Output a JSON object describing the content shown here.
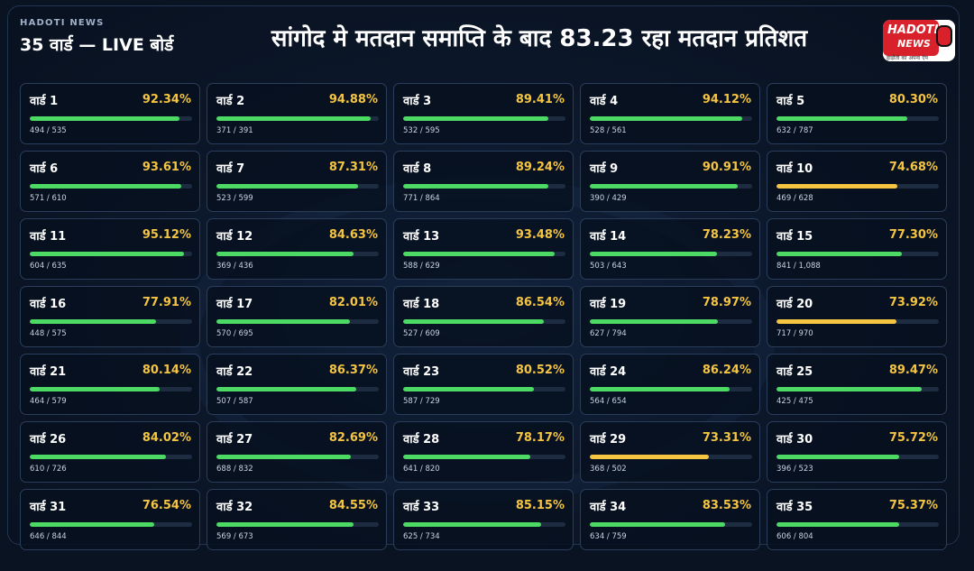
{
  "header": {
    "brand_small": "HADOTI NEWS",
    "board_title": "35 वार्ड — LIVE बोर्ड",
    "headline": "सांगोद मे मतदान समाप्ति के बाद 83.23 रहा मतदान प्रतिशत",
    "logo_line1": "HADOTI",
    "logo_line2": "NEWS",
    "logo_tagline": "हाड़ौती का अपना ऐप"
  },
  "colors": {
    "bar_high": "#4cd964",
    "bar_low": "#f5c542",
    "percent_text": "#f5c542"
  },
  "wards": [
    {
      "label": "वार्ड 1",
      "percent_text": "92.34%",
      "percent": 92.34,
      "counts": "494 / 535"
    },
    {
      "label": "वार्ड 2",
      "percent_text": "94.88%",
      "percent": 94.88,
      "counts": "371 / 391"
    },
    {
      "label": "वार्ड 3",
      "percent_text": "89.41%",
      "percent": 89.41,
      "counts": "532 / 595"
    },
    {
      "label": "वार्ड 4",
      "percent_text": "94.12%",
      "percent": 94.12,
      "counts": "528 / 561"
    },
    {
      "label": "वार्ड 5",
      "percent_text": "80.30%",
      "percent": 80.3,
      "counts": "632 / 787"
    },
    {
      "label": "वार्ड 6",
      "percent_text": "93.61%",
      "percent": 93.61,
      "counts": "571 / 610"
    },
    {
      "label": "वार्ड 7",
      "percent_text": "87.31%",
      "percent": 87.31,
      "counts": "523 / 599"
    },
    {
      "label": "वार्ड 8",
      "percent_text": "89.24%",
      "percent": 89.24,
      "counts": "771 / 864"
    },
    {
      "label": "वार्ड 9",
      "percent_text": "90.91%",
      "percent": 90.91,
      "counts": "390 / 429"
    },
    {
      "label": "वार्ड 10",
      "percent_text": "74.68%",
      "percent": 74.68,
      "counts": "469 / 628"
    },
    {
      "label": "वार्ड 11",
      "percent_text": "95.12%",
      "percent": 95.12,
      "counts": "604 / 635"
    },
    {
      "label": "वार्ड 12",
      "percent_text": "84.63%",
      "percent": 84.63,
      "counts": "369 / 436"
    },
    {
      "label": "वार्ड 13",
      "percent_text": "93.48%",
      "percent": 93.48,
      "counts": "588 / 629"
    },
    {
      "label": "वार्ड 14",
      "percent_text": "78.23%",
      "percent": 78.23,
      "counts": "503 / 643"
    },
    {
      "label": "वार्ड 15",
      "percent_text": "77.30%",
      "percent": 77.3,
      "counts": "841 / 1,088"
    },
    {
      "label": "वार्ड 16",
      "percent_text": "77.91%",
      "percent": 77.91,
      "counts": "448 / 575"
    },
    {
      "label": "वार्ड 17",
      "percent_text": "82.01%",
      "percent": 82.01,
      "counts": "570 / 695"
    },
    {
      "label": "वार्ड 18",
      "percent_text": "86.54%",
      "percent": 86.54,
      "counts": "527 / 609"
    },
    {
      "label": "वार्ड 19",
      "percent_text": "78.97%",
      "percent": 78.97,
      "counts": "627 / 794"
    },
    {
      "label": "वार्ड 20",
      "percent_text": "73.92%",
      "percent": 73.92,
      "counts": "717 / 970"
    },
    {
      "label": "वार्ड 21",
      "percent_text": "80.14%",
      "percent": 80.14,
      "counts": "464 / 579"
    },
    {
      "label": "वार्ड 22",
      "percent_text": "86.37%",
      "percent": 86.37,
      "counts": "507 / 587"
    },
    {
      "label": "वार्ड 23",
      "percent_text": "80.52%",
      "percent": 80.52,
      "counts": "587 / 729"
    },
    {
      "label": "वार्ड 24",
      "percent_text": "86.24%",
      "percent": 86.24,
      "counts": "564 / 654"
    },
    {
      "label": "वार्ड 25",
      "percent_text": "89.47%",
      "percent": 89.47,
      "counts": "425 / 475"
    },
    {
      "label": "वार्ड 26",
      "percent_text": "84.02%",
      "percent": 84.02,
      "counts": "610 / 726"
    },
    {
      "label": "वार्ड 27",
      "percent_text": "82.69%",
      "percent": 82.69,
      "counts": "688 / 832"
    },
    {
      "label": "वार्ड 28",
      "percent_text": "78.17%",
      "percent": 78.17,
      "counts": "641 / 820"
    },
    {
      "label": "वार्ड 29",
      "percent_text": "73.31%",
      "percent": 73.31,
      "counts": "368 / 502"
    },
    {
      "label": "वार्ड 30",
      "percent_text": "75.72%",
      "percent": 75.72,
      "counts": "396 / 523"
    },
    {
      "label": "वार्ड 31",
      "percent_text": "76.54%",
      "percent": 76.54,
      "counts": "646 / 844"
    },
    {
      "label": "वार्ड 32",
      "percent_text": "84.55%",
      "percent": 84.55,
      "counts": "569 / 673"
    },
    {
      "label": "वार्ड 33",
      "percent_text": "85.15%",
      "percent": 85.15,
      "counts": "625 / 734"
    },
    {
      "label": "वार्ड 34",
      "percent_text": "83.53%",
      "percent": 83.53,
      "counts": "634 / 759"
    },
    {
      "label": "वार्ड 35",
      "percent_text": "75.37%",
      "percent": 75.37,
      "counts": "606 / 804"
    }
  ]
}
